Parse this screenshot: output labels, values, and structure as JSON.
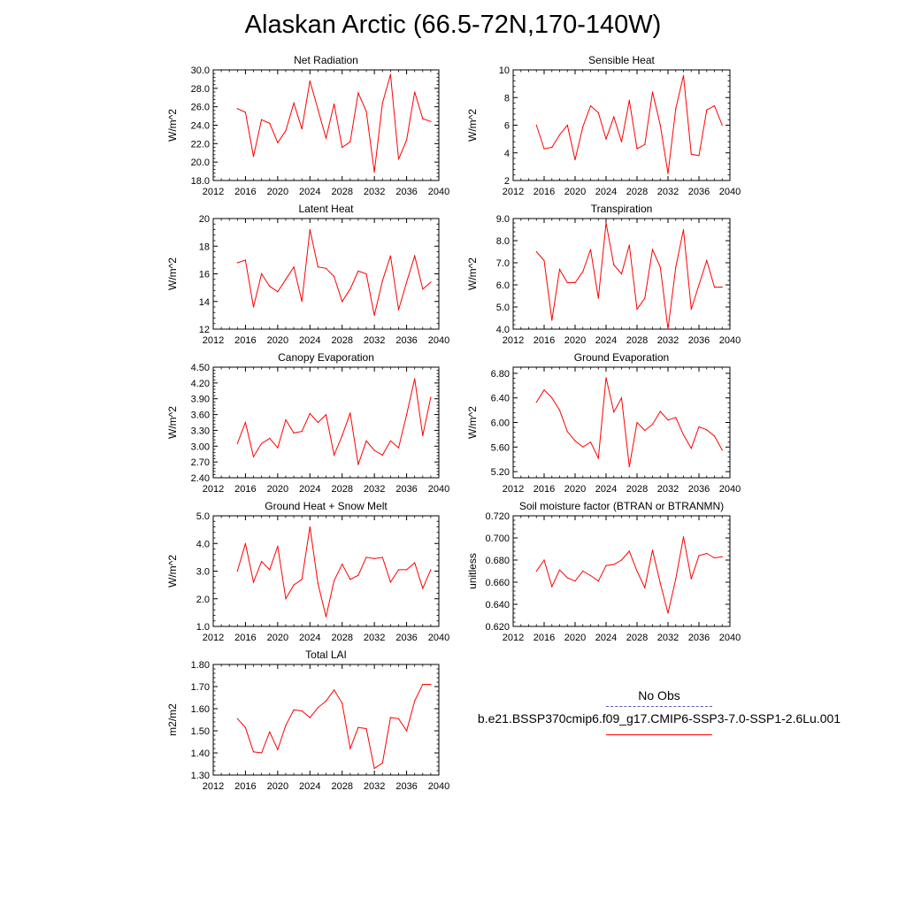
{
  "title": "Alaskan Arctic (66.5-72N,170-140W)",
  "colors": {
    "series": "#ff0000",
    "obs": "#5a5ab0",
    "axis": "#000000"
  },
  "legend": {
    "obs_label": "No Obs",
    "case_label": "b.e21.BSSP370cmip6.f09_g17.CMIP6-SSP3-7.0-SSP1-2.6Lu.001"
  },
  "chart_data": [
    {
      "type": "line",
      "title": "Net Radiation",
      "xlabel": "",
      "ylabel": "W/m^2",
      "xlim": [
        2012,
        2040
      ],
      "ylim": [
        18,
        30
      ],
      "xticks": [
        2012,
        2016,
        2020,
        2024,
        2028,
        2032,
        2036,
        2040
      ],
      "yticks": [
        18,
        20,
        22,
        24,
        26,
        28,
        30
      ],
      "ytick_decimals": 1,
      "series": [
        {
          "x": [
            2015,
            2016,
            2017,
            2018,
            2019,
            2020,
            2021,
            2022,
            2023,
            2024,
            2025,
            2026,
            2027,
            2028,
            2029,
            2030,
            2031,
            2032,
            2033,
            2034,
            2035,
            2036,
            2037,
            2038,
            2039
          ],
          "values": [
            25.8,
            25.4,
            20.6,
            24.6,
            24.2,
            22.1,
            23.4,
            26.4,
            23.6,
            28.8,
            25.7,
            22.6,
            26.3,
            21.6,
            22.2,
            27.5,
            25.5,
            18.9,
            26.4,
            29.5,
            20.3,
            22.4,
            27.6,
            24.7,
            24.4
          ]
        }
      ]
    },
    {
      "type": "line",
      "title": "Sensible Heat",
      "xlabel": "",
      "ylabel": "W/m^2",
      "xlim": [
        2012,
        2040
      ],
      "ylim": [
        2,
        10
      ],
      "xticks": [
        2012,
        2016,
        2020,
        2024,
        2028,
        2032,
        2036,
        2040
      ],
      "yticks": [
        2,
        4,
        6,
        8,
        10
      ],
      "ytick_decimals": 0,
      "series": [
        {
          "x": [
            2015,
            2016,
            2017,
            2018,
            2019,
            2020,
            2021,
            2022,
            2023,
            2024,
            2025,
            2026,
            2027,
            2028,
            2029,
            2030,
            2031,
            2032,
            2033,
            2034,
            2035,
            2036,
            2037,
            2038,
            2039
          ],
          "values": [
            6.0,
            4.3,
            4.4,
            5.3,
            6.0,
            3.5,
            5.9,
            7.4,
            6.9,
            5.0,
            6.6,
            4.8,
            7.8,
            4.3,
            4.6,
            8.4,
            6.0,
            2.5,
            7.2,
            9.6,
            3.9,
            3.8,
            7.1,
            7.4,
            6.0
          ]
        }
      ]
    },
    {
      "type": "line",
      "title": "Latent Heat",
      "xlabel": "",
      "ylabel": "W/m^2",
      "xlim": [
        2012,
        2040
      ],
      "ylim": [
        12,
        20
      ],
      "xticks": [
        2012,
        2016,
        2020,
        2024,
        2028,
        2032,
        2036,
        2040
      ],
      "yticks": [
        12,
        14,
        16,
        18,
        20
      ],
      "ytick_decimals": 0,
      "series": [
        {
          "x": [
            2015,
            2016,
            2017,
            2018,
            2019,
            2020,
            2021,
            2022,
            2023,
            2024,
            2025,
            2026,
            2027,
            2028,
            2029,
            2030,
            2031,
            2032,
            2033,
            2034,
            2035,
            2036,
            2037,
            2038,
            2039
          ],
          "values": [
            16.8,
            17.0,
            13.6,
            16.0,
            15.1,
            14.7,
            15.6,
            16.5,
            14.0,
            19.2,
            16.5,
            16.4,
            15.8,
            14.0,
            14.9,
            16.2,
            16.0,
            13.0,
            15.5,
            17.3,
            13.4,
            15.4,
            17.3,
            14.9,
            15.4
          ]
        }
      ]
    },
    {
      "type": "line",
      "title": "Transpiration",
      "xlabel": "",
      "ylabel": "W/m^2",
      "xlim": [
        2012,
        2040
      ],
      "ylim": [
        4,
        9
      ],
      "xticks": [
        2012,
        2016,
        2020,
        2024,
        2028,
        2032,
        2036,
        2040
      ],
      "yticks": [
        4,
        5,
        6,
        7,
        8,
        9
      ],
      "ytick_decimals": 1,
      "series": [
        {
          "x": [
            2015,
            2016,
            2017,
            2018,
            2019,
            2020,
            2021,
            2022,
            2023,
            2024,
            2025,
            2026,
            2027,
            2028,
            2029,
            2030,
            2031,
            2032,
            2033,
            2034,
            2035,
            2036,
            2037,
            2038,
            2039
          ],
          "values": [
            7.5,
            7.1,
            4.4,
            6.7,
            6.1,
            6.1,
            6.6,
            7.6,
            5.4,
            8.8,
            6.9,
            6.5,
            7.8,
            4.9,
            5.4,
            7.6,
            6.8,
            4.0,
            6.8,
            8.5,
            4.9,
            6.0,
            7.1,
            5.9,
            5.9
          ]
        }
      ]
    },
    {
      "type": "line",
      "title": "Canopy Evaporation",
      "xlabel": "",
      "ylabel": "W/m^2",
      "xlim": [
        2012,
        2040
      ],
      "ylim": [
        2.4,
        4.5
      ],
      "xticks": [
        2012,
        2016,
        2020,
        2024,
        2028,
        2032,
        2036,
        2040
      ],
      "yticks": [
        2.4,
        2.7,
        3.0,
        3.3,
        3.6,
        3.9,
        4.2,
        4.5
      ],
      "ytick_decimals": 2,
      "series": [
        {
          "x": [
            2015,
            2016,
            2017,
            2018,
            2019,
            2020,
            2021,
            2022,
            2023,
            2024,
            2025,
            2026,
            2027,
            2028,
            2029,
            2030,
            2031,
            2032,
            2033,
            2034,
            2035,
            2036,
            2037,
            2038,
            2039
          ],
          "values": [
            3.05,
            3.45,
            2.8,
            3.05,
            3.15,
            2.97,
            3.5,
            3.25,
            3.28,
            3.62,
            3.45,
            3.6,
            2.83,
            3.2,
            3.63,
            2.65,
            3.1,
            2.92,
            2.83,
            3.1,
            2.97,
            3.6,
            4.28,
            3.2,
            3.93
          ]
        }
      ]
    },
    {
      "type": "line",
      "title": "Ground Evaporation",
      "xlabel": "",
      "ylabel": "W/m^2",
      "xlim": [
        2012,
        2040
      ],
      "ylim": [
        5.1,
        6.9
      ],
      "xticks": [
        2012,
        2016,
        2020,
        2024,
        2028,
        2032,
        2036,
        2040
      ],
      "yticks": [
        5.2,
        5.6,
        6.0,
        6.4,
        6.8
      ],
      "ytick_decimals": 2,
      "series": [
        {
          "x": [
            2015,
            2016,
            2017,
            2018,
            2019,
            2020,
            2021,
            2022,
            2023,
            2024,
            2025,
            2026,
            2027,
            2028,
            2029,
            2030,
            2031,
            2032,
            2033,
            2034,
            2035,
            2036,
            2037,
            2038,
            2039
          ],
          "values": [
            6.33,
            6.53,
            6.4,
            6.2,
            5.85,
            5.7,
            5.6,
            5.68,
            5.42,
            6.73,
            6.17,
            6.4,
            5.28,
            6.0,
            5.87,
            5.97,
            6.18,
            6.04,
            6.08,
            5.8,
            5.58,
            5.93,
            5.88,
            5.78,
            5.55
          ]
        }
      ]
    },
    {
      "type": "line",
      "title": "Ground Heat + Snow Melt",
      "xlabel": "",
      "ylabel": "W/m^2",
      "xlim": [
        2012,
        2040
      ],
      "ylim": [
        1,
        5
      ],
      "xticks": [
        2012,
        2016,
        2020,
        2024,
        2028,
        2032,
        2036,
        2040
      ],
      "yticks": [
        1,
        2,
        3,
        4,
        5
      ],
      "ytick_decimals": 1,
      "series": [
        {
          "x": [
            2015,
            2016,
            2017,
            2018,
            2019,
            2020,
            2021,
            2022,
            2023,
            2024,
            2025,
            2026,
            2027,
            2028,
            2029,
            2030,
            2031,
            2032,
            2033,
            2034,
            2035,
            2036,
            2037,
            2038,
            2039
          ],
          "values": [
            3.0,
            4.0,
            2.6,
            3.35,
            3.05,
            3.9,
            2.0,
            2.5,
            2.7,
            4.6,
            2.55,
            1.35,
            2.65,
            3.25,
            2.7,
            2.85,
            3.5,
            3.45,
            3.5,
            2.6,
            3.05,
            3.05,
            3.3,
            2.38,
            3.05
          ]
        }
      ]
    },
    {
      "type": "line",
      "title": "Soil moisture factor (BTRAN or BTRANMN)",
      "xlabel": "",
      "ylabel": "unitless",
      "xlim": [
        2012,
        2040
      ],
      "ylim": [
        0.62,
        0.72
      ],
      "xticks": [
        2012,
        2016,
        2020,
        2024,
        2028,
        2032,
        2036,
        2040
      ],
      "yticks": [
        0.62,
        0.64,
        0.66,
        0.68,
        0.7,
        0.72
      ],
      "ytick_decimals": 3,
      "series": [
        {
          "x": [
            2015,
            2016,
            2017,
            2018,
            2019,
            2020,
            2021,
            2022,
            2023,
            2024,
            2025,
            2026,
            2027,
            2028,
            2029,
            2030,
            2031,
            2032,
            2033,
            2034,
            2035,
            2036,
            2037,
            2038,
            2039
          ],
          "values": [
            0.67,
            0.68,
            0.656,
            0.671,
            0.664,
            0.661,
            0.67,
            0.666,
            0.661,
            0.675,
            0.676,
            0.68,
            0.688,
            0.67,
            0.655,
            0.689,
            0.659,
            0.632,
            0.663,
            0.701,
            0.663,
            0.684,
            0.686,
            0.682,
            0.683
          ]
        }
      ]
    },
    {
      "type": "line",
      "title": "Total LAI",
      "xlabel": "",
      "ylabel": "m2/m2",
      "xlim": [
        2012,
        2040
      ],
      "ylim": [
        1.3,
        1.8
      ],
      "xticks": [
        2012,
        2016,
        2020,
        2024,
        2028,
        2032,
        2036,
        2040
      ],
      "yticks": [
        1.3,
        1.4,
        1.5,
        1.6,
        1.7,
        1.8
      ],
      "ytick_decimals": 2,
      "series": [
        {
          "x": [
            2015,
            2016,
            2017,
            2018,
            2019,
            2020,
            2021,
            2022,
            2023,
            2024,
            2025,
            2026,
            2027,
            2028,
            2029,
            2030,
            2031,
            2032,
            2033,
            2034,
            2035,
            2036,
            2037,
            2038,
            2039
          ],
          "values": [
            1.555,
            1.515,
            1.405,
            1.4,
            1.495,
            1.415,
            1.525,
            1.595,
            1.59,
            1.56,
            1.605,
            1.635,
            1.685,
            1.625,
            1.42,
            1.515,
            1.51,
            1.33,
            1.355,
            1.56,
            1.555,
            1.5,
            1.635,
            1.71,
            1.71
          ]
        }
      ]
    }
  ]
}
